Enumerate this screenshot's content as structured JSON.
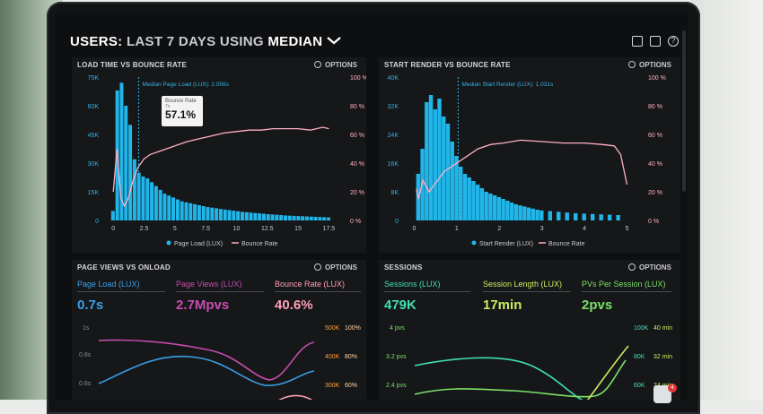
{
  "header": {
    "prefix": "USERS:",
    "range": "LAST 7 DAYS",
    "using": "USING",
    "stat": "MEDIAN"
  },
  "icons": [
    "monitor-icon",
    "share-icon",
    "help-icon"
  ],
  "panels": {
    "load": {
      "title": "LOAD TIME VS BOUNCE RATE",
      "options": "OPTIONS",
      "median_label": "Median Page Load (LUX): 2.056s",
      "tooltip_label": "Bounce Rate",
      "tooltip_sub": "7s",
      "tooltip_value": "57.1%",
      "legend": [
        "Page Load (LUX)",
        "Bounce Rate"
      ]
    },
    "render": {
      "title": "START RENDER VS BOUNCE RATE",
      "options": "OPTIONS",
      "median_label": "Median Start Render (LUX): 1.031s",
      "legend": [
        "Start Render (LUX)",
        "Bounce Rate"
      ]
    },
    "views": {
      "title": "PAGE VIEWS VS ONLOAD",
      "options": "OPTIONS",
      "metrics": [
        {
          "label": "Page Load (LUX)",
          "value": "0.7s",
          "color": "#3aa0e8"
        },
        {
          "label": "Page Views (LUX)",
          "value": "2.7Mpvs",
          "color": "#c84db0"
        },
        {
          "label": "Bounce Rate (LUX)",
          "value": "40.6%",
          "color": "#ff9fb6"
        }
      ],
      "left_ticks": [
        "1s",
        "0.8s",
        "0.6s"
      ],
      "right_ticks_a": [
        "500K",
        "400K",
        "300K"
      ],
      "right_ticks_b": [
        "100%",
        "80%",
        "60%"
      ]
    },
    "sessions": {
      "title": "SESSIONS",
      "options": "OPTIONS",
      "metrics": [
        {
          "label": "Sessions (LUX)",
          "value": "479K",
          "color": "#3fe0b0"
        },
        {
          "label": "Session Length (LUX)",
          "value": "17min",
          "color": "#c8f060"
        },
        {
          "label": "PVs Per Session (LUX)",
          "value": "2pvs",
          "color": "#7be06a"
        }
      ],
      "left_ticks": [
        "4 pvs",
        "3.2 pvs",
        "2.4 pvs"
      ],
      "right_ticks_a": [
        "100K",
        "80K",
        "60K"
      ],
      "right_ticks_b": [
        "40 min",
        "32 min",
        "24 min"
      ]
    }
  },
  "badge": "4",
  "chart_data": [
    {
      "type": "bar",
      "title": "LOAD TIME VS BOUNCE RATE",
      "y_left_ticks": [
        "75K",
        "60K",
        "45K",
        "30K",
        "15K",
        "0"
      ],
      "y_right_ticks": [
        "100 %",
        "80 %",
        "60 %",
        "40 %",
        "20 %",
        "0 %"
      ],
      "x_ticks": [
        "0",
        "2.5",
        "5",
        "7.5",
        "10",
        "12.5",
        "15",
        "17.5"
      ],
      "ylim": [
        0,
        75000
      ],
      "series": [
        {
          "name": "Page Load (LUX)",
          "type": "bar",
          "x": [
            0,
            0.35,
            0.7,
            1.05,
            1.4,
            1.75,
            2.1,
            2.45,
            2.8,
            3.15,
            3.5,
            3.85,
            4.2,
            4.55,
            4.9,
            5.25,
            5.6,
            5.95,
            6.3,
            6.65,
            7,
            7.35,
            7.7,
            8.05,
            8.4,
            8.75,
            9.1,
            9.45,
            9.8,
            10.15,
            10.5,
            10.85,
            11.2,
            11.55,
            11.9,
            12.25,
            12.6,
            12.95,
            13.3,
            13.65,
            14,
            14.35,
            14.7,
            15.05,
            15.4,
            15.75,
            16.1,
            16.45,
            16.8,
            17.15,
            17.5
          ],
          "values": [
            5000,
            68000,
            72000,
            60000,
            50000,
            32000,
            25000,
            23000,
            22000,
            20000,
            18000,
            16000,
            14000,
            13000,
            12000,
            11000,
            10000,
            9500,
            9000,
            8500,
            8000,
            7500,
            7000,
            6700,
            6400,
            6000,
            5700,
            5400,
            5100,
            4800,
            4500,
            4300,
            4100,
            3900,
            3700,
            3500,
            3300,
            3100,
            3000,
            2800,
            2600,
            2500,
            2400,
            2300,
            2200,
            2100,
            2000,
            1900,
            1800,
            1700,
            1600
          ]
        },
        {
          "name": "Bounce Rate",
          "type": "line",
          "x": [
            0,
            0.3,
            0.6,
            0.9,
            1.2,
            1.6,
            2,
            2.5,
            3,
            4,
            5,
            6,
            7,
            8,
            9,
            10,
            11,
            12,
            13,
            14,
            15,
            16,
            17,
            17.5
          ],
          "values": [
            20,
            50,
            16,
            10,
            15,
            28,
            37,
            43,
            46,
            49,
            52,
            55,
            57,
            59,
            61,
            62,
            63,
            63,
            64,
            64,
            64,
            63,
            65,
            64
          ]
        }
      ]
    },
    {
      "type": "bar",
      "title": "START RENDER VS BOUNCE RATE",
      "y_left_ticks": [
        "40K",
        "32K",
        "24K",
        "16K",
        "8K",
        "0"
      ],
      "y_right_ticks": [
        "100 %",
        "80 %",
        "60 %",
        "40 %",
        "20 %",
        "0 %"
      ],
      "x_ticks": [
        "0",
        "1",
        "2",
        "3",
        "4",
        "5"
      ],
      "ylim": [
        0,
        40000
      ],
      "series": [
        {
          "name": "Start Render (LUX)",
          "type": "bar",
          "x": [
            0.1,
            0.2,
            0.3,
            0.4,
            0.5,
            0.6,
            0.7,
            0.8,
            0.9,
            1,
            1.1,
            1.2,
            1.3,
            1.4,
            1.5,
            1.6,
            1.7,
            1.8,
            1.9,
            2,
            2.1,
            2.2,
            2.3,
            2.4,
            2.5,
            2.6,
            2.7,
            2.8,
            2.9,
            3,
            3.2,
            3.4,
            3.6,
            3.8,
            4,
            4.2,
            4.4,
            4.6,
            4.8
          ],
          "values": [
            13000,
            20000,
            33000,
            35000,
            31000,
            34000,
            29000,
            27000,
            22000,
            18000,
            15000,
            13000,
            12000,
            11000,
            10000,
            9000,
            8000,
            7500,
            7000,
            6500,
            6000,
            5500,
            5000,
            4500,
            4200,
            3900,
            3600,
            3300,
            3000,
            2800,
            2600,
            2400,
            2200,
            2000,
            1900,
            1800,
            1700,
            1600,
            1500
          ]
        },
        {
          "name": "Bounce Rate",
          "type": "line",
          "x": [
            0.05,
            0.1,
            0.2,
            0.35,
            0.5,
            0.7,
            0.9,
            1.2,
            1.5,
            1.8,
            2.1,
            2.5,
            3,
            3.5,
            4,
            4.4,
            4.7,
            4.85,
            5
          ],
          "values": [
            22,
            15,
            28,
            20,
            26,
            34,
            38,
            44,
            50,
            53,
            54,
            56,
            55,
            54,
            54,
            53,
            52,
            46,
            25
          ]
        }
      ]
    }
  ]
}
